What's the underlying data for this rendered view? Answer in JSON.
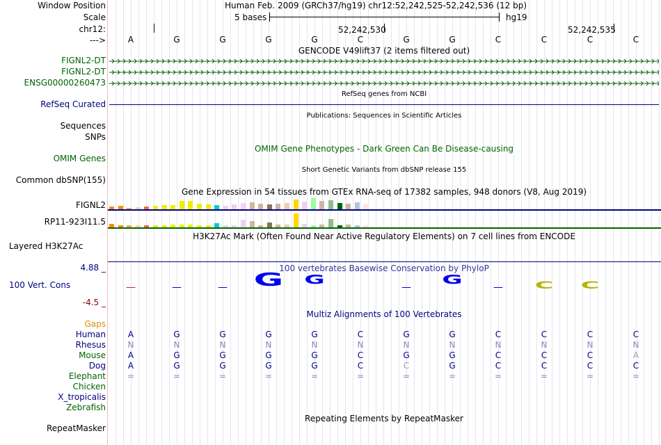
{
  "header": {
    "window_position_label": "Window Position",
    "scale_label": "Scale",
    "chrom_label": "chr12:",
    "arrow_label": "--->",
    "position_text": "Human Feb. 2009 (GRCh37/hg19)   chr12:52,242,525-52,242,536 (12 bp)",
    "scale_text": "5 bases",
    "assembly": "hg19",
    "coord_1": "52,242,530",
    "coord_2": "52,242,535"
  },
  "sequence": [
    "A",
    "G",
    "G",
    "G",
    "G",
    "C",
    "G",
    "G",
    "C",
    "C",
    "C",
    "C"
  ],
  "tracks": {
    "gencode_title": "GENCODE V49lift37 (2 items filtered out)",
    "gencode_items": [
      "FIGNL2-DT",
      "FIGNL2-DT",
      "ENSG00000260473"
    ],
    "refseq_title": "RefSeq genes from NCBI",
    "refseq_label": "RefSeq Curated",
    "pubs_title": "Publications: Sequences in Scientific Articles",
    "sequences_label": "Sequences",
    "snps_label": "SNPs",
    "omim_title": "OMIM Gene Phenotypes - Dark Green Can Be Disease-causing",
    "omim_label": "OMIM Genes",
    "dbsnp_title": "Short Genetic Variants from dbSNP release 155",
    "dbsnp_label": "Common dbSNP(155)",
    "gtex_title": "Gene Expression in 54 tissues from GTEx RNA-seq of 17382 samples, 948 donors (V8, Aug 2019)",
    "gtex_gene1": "FIGNL2",
    "gtex_gene2": "RP11-923I11.5",
    "h3k27_title": "H3K27Ac Mark (Often Found Near Active Regulatory Elements) on 7 cell lines from ENCODE",
    "h3k27_label": "Layered H3K27Ac",
    "cons_title": "100 vertebrates Basewise Conservation by PhyloP",
    "cons_max": "4.88 _",
    "cons_label": "100 Vert. Cons",
    "cons_min": "-4.5 _",
    "multiz_title": "Multiz Alignments of 100 Vertebrates",
    "gaps_label": "Gaps",
    "repeat_title": "Repeating Elements by RepeatMasker",
    "repeat_label": "RepeatMasker"
  },
  "alignment": {
    "species": [
      "Human",
      "Rhesus",
      "Mouse",
      "Dog",
      "Elephant",
      "Chicken",
      "X_tropicalis",
      "Zebrafish"
    ],
    "rows": {
      "Human": [
        "A",
        "G",
        "G",
        "G",
        "G",
        "C",
        "G",
        "G",
        "C",
        "C",
        "C",
        "C"
      ],
      "Rhesus": [
        "N",
        "N",
        "N",
        "N",
        "N",
        "N",
        "N",
        "N",
        "N",
        "N",
        "N",
        "N"
      ],
      "Mouse": [
        "A",
        "G",
        "G",
        "G",
        "G",
        "C",
        "G",
        "G",
        "C",
        "C",
        "C",
        "A"
      ],
      "Dog": [
        "A",
        "G",
        "G",
        "G",
        "G",
        "C",
        "C",
        "G",
        "C",
        "C",
        "C",
        "C"
      ],
      "Elephant": [
        "=",
        "=",
        "=",
        "=",
        "=",
        "=",
        "=",
        "=",
        "=",
        "=",
        "=",
        "="
      ]
    }
  },
  "conservation_glyphs": [
    "-",
    "-",
    "-",
    "G",
    "G",
    "",
    "-",
    "G",
    "-",
    "C",
    "C",
    ""
  ],
  "colors": {
    "navy": "#000080",
    "green": "#006400",
    "gaps": "#d98e00",
    "conservation_blue": "#0000ee",
    "conservation_olive": "#b5b500",
    "negative_red": "#cc2222"
  }
}
